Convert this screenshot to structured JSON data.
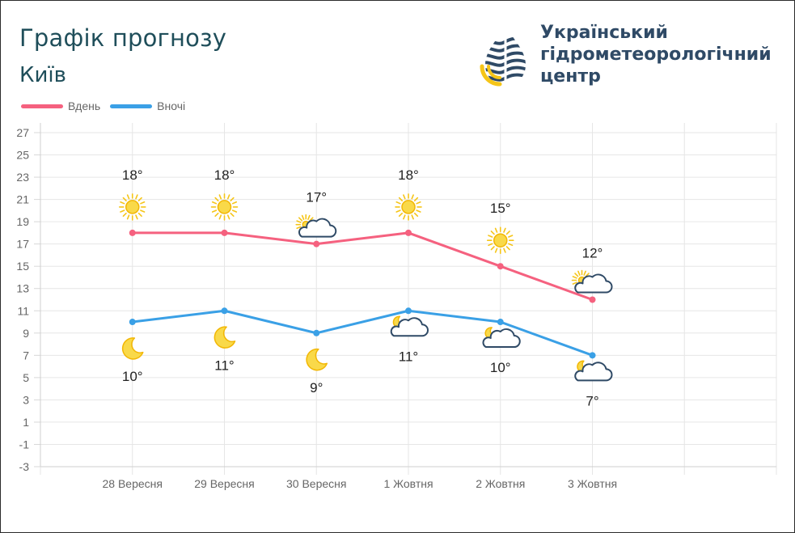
{
  "header": {
    "title": "Графік прогнозу",
    "city": "Київ",
    "org_lines": [
      "Український",
      "гідрометеорологічний",
      "центр"
    ]
  },
  "legend": [
    {
      "label": "Вдень",
      "color": "#f5617f"
    },
    {
      "label": "Вночі",
      "color": "#3aa0e6"
    }
  ],
  "chart_data": {
    "type": "line",
    "categories": [
      "28 Вересня",
      "29 Вересня",
      "30 Вересня",
      "1 Жовтня",
      "2 Жовтня",
      "3 Жовтня"
    ],
    "series": [
      {
        "name": "Вдень",
        "color": "#f5617f",
        "values": [
          18,
          18,
          17,
          18,
          15,
          12
        ],
        "labels": [
          "18°",
          "18°",
          "17°",
          "18°",
          "15°",
          "12°"
        ],
        "icons": [
          "sun-icon",
          "sun-icon",
          "partly-cloudy-icon",
          "sun-icon",
          "sun-icon",
          "partly-cloudy-icon"
        ]
      },
      {
        "name": "Вночі",
        "color": "#3aa0e6",
        "values": [
          10,
          11,
          9,
          11,
          10,
          7
        ],
        "labels": [
          "10°",
          "11°",
          "9°",
          "11°",
          "10°",
          "7°"
        ],
        "icons": [
          "moon-icon",
          "moon-icon",
          "moon-icon",
          "moon-cloud-icon",
          "moon-cloud-icon",
          "moon-cloud-icon"
        ]
      }
    ],
    "ylim": [
      -3,
      27
    ],
    "yticks": [
      "27",
      "25",
      "23",
      "21",
      "19",
      "17",
      "15",
      "13",
      "11",
      "9",
      "7",
      "5",
      "3",
      "1",
      "-1",
      "-3"
    ],
    "grid": true,
    "legend_position": "top-left"
  }
}
